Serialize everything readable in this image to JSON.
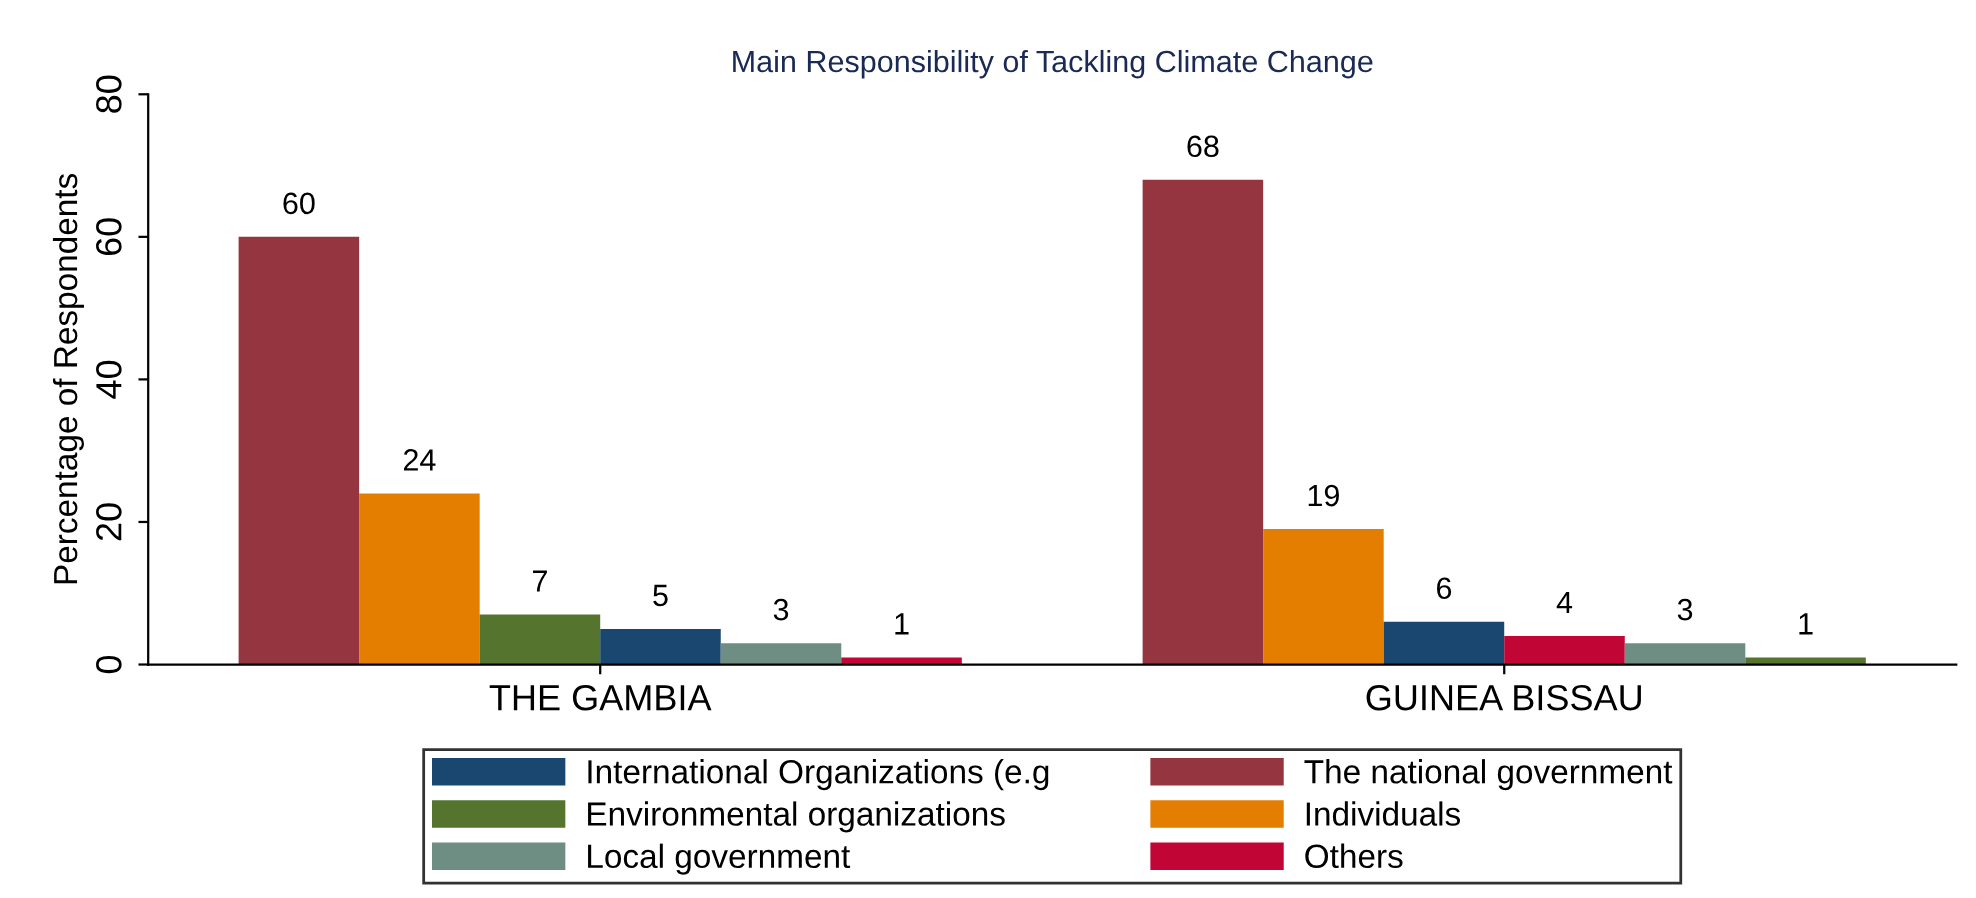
{
  "chart_data": {
    "type": "bar",
    "title": "Main Responsibility of Tackling Climate Change",
    "ylabel": "Percentage of Respondents",
    "categories": [
      "THE GAMBIA",
      "GUINEA BISSAU"
    ],
    "series": [
      {
        "name": "International Organizations (e.g",
        "color": "#1a476f",
        "values": [
          5,
          6
        ]
      },
      {
        "name": "Environmental organizations",
        "color": "#55752f",
        "values": [
          7,
          1
        ]
      },
      {
        "name": "Local government",
        "color": "#6e8e84",
        "values": [
          3,
          3
        ]
      },
      {
        "name": "The national government",
        "color": "#943540",
        "values": [
          60,
          68
        ]
      },
      {
        "name": "Individuals",
        "color": "#e37e00",
        "values": [
          24,
          19
        ]
      },
      {
        "name": "Others",
        "color": "#c10534",
        "values": [
          1,
          4
        ]
      }
    ],
    "ylim": [
      0,
      80
    ],
    "yticks": [
      0,
      20,
      40,
      60,
      80
    ],
    "data_labels": true,
    "grid": false,
    "legend": "bottom"
  }
}
